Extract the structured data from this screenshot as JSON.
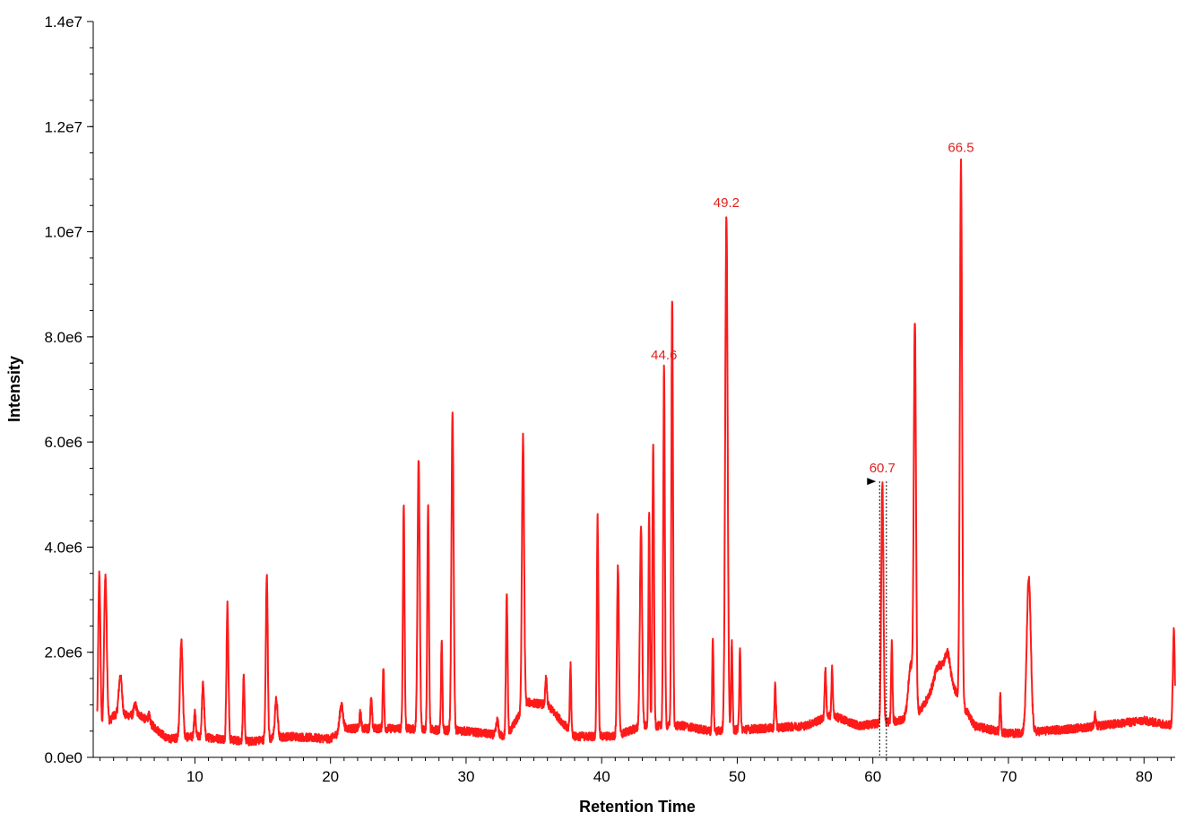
{
  "chart_data": {
    "type": "line",
    "title": "",
    "xlabel": "Retention Time",
    "ylabel": "Intensity",
    "xlim": [
      2.5,
      82.3
    ],
    "ylim": [
      0,
      14000000
    ],
    "x_ticks": [
      10,
      20,
      30,
      40,
      50,
      60,
      70,
      80
    ],
    "x_tick_labels": [
      "10",
      "20",
      "30",
      "40",
      "50",
      "60",
      "70",
      "80"
    ],
    "y_ticks": [
      0,
      2000000,
      4000000,
      6000000,
      8000000,
      10000000,
      12000000,
      14000000
    ],
    "y_tick_labels": [
      "0.0e0",
      "2.0e6",
      "4.0e6",
      "6.0e6",
      "8.0e6",
      "1.0e7",
      "1.2e7",
      "1.4e7"
    ],
    "grid": false,
    "legend": "none",
    "line_color": "#ff1a1a",
    "label_color": "#e0201e",
    "baseline": [
      [
        2.8,
        300000
      ],
      [
        4,
        800000
      ],
      [
        6,
        800000
      ],
      [
        8,
        350000
      ],
      [
        10,
        400000
      ],
      [
        14,
        300000
      ],
      [
        17,
        400000
      ],
      [
        20,
        350000
      ],
      [
        21,
        550000
      ],
      [
        25,
        550000
      ],
      [
        30,
        500000
      ],
      [
        33,
        400000
      ],
      [
        34.5,
        1050000
      ],
      [
        36,
        1000000
      ],
      [
        38,
        400000
      ],
      [
        41,
        400000
      ],
      [
        43,
        600000
      ],
      [
        46,
        600000
      ],
      [
        48,
        500000
      ],
      [
        52,
        550000
      ],
      [
        55,
        600000
      ],
      [
        57,
        800000
      ],
      [
        59,
        600000
      ],
      [
        62,
        700000
      ],
      [
        63.5,
        900000
      ],
      [
        65,
        1500000
      ],
      [
        66,
        1300000
      ],
      [
        67.5,
        600000
      ],
      [
        70,
        450000
      ],
      [
        75,
        550000
      ],
      [
        80,
        700000
      ],
      [
        82.3,
        600000
      ]
    ],
    "peaks": [
      {
        "x": 2.95,
        "y": 3500000,
        "w": 0.08
      },
      {
        "x": 3.4,
        "y": 3450000,
        "w": 0.1
      },
      {
        "x": 4.5,
        "y": 1550000,
        "w": 0.12
      },
      {
        "x": 5.6,
        "y": 1000000,
        "w": 0.1
      },
      {
        "x": 6.6,
        "y": 800000,
        "w": 0.08
      },
      {
        "x": 9.0,
        "y": 2200000,
        "w": 0.1
      },
      {
        "x": 10.0,
        "y": 850000,
        "w": 0.06
      },
      {
        "x": 10.6,
        "y": 1400000,
        "w": 0.08
      },
      {
        "x": 12.4,
        "y": 2900000,
        "w": 0.07
      },
      {
        "x": 13.6,
        "y": 1500000,
        "w": 0.06
      },
      {
        "x": 15.3,
        "y": 3500000,
        "w": 0.07
      },
      {
        "x": 16.0,
        "y": 1100000,
        "w": 0.1
      },
      {
        "x": 20.8,
        "y": 1000000,
        "w": 0.12
      },
      {
        "x": 22.2,
        "y": 850000,
        "w": 0.06
      },
      {
        "x": 23.0,
        "y": 1100000,
        "w": 0.06
      },
      {
        "x": 23.9,
        "y": 1750000,
        "w": 0.05
      },
      {
        "x": 25.4,
        "y": 4800000,
        "w": 0.06
      },
      {
        "x": 26.5,
        "y": 5650000,
        "w": 0.08
      },
      {
        "x": 27.2,
        "y": 4800000,
        "w": 0.06
      },
      {
        "x": 28.2,
        "y": 2200000,
        "w": 0.05
      },
      {
        "x": 29.0,
        "y": 6500000,
        "w": 0.08
      },
      {
        "x": 32.3,
        "y": 700000,
        "w": 0.08
      },
      {
        "x": 33.0,
        "y": 3100000,
        "w": 0.06
      },
      {
        "x": 34.2,
        "y": 6100000,
        "w": 0.08
      },
      {
        "x": 35.9,
        "y": 1500000,
        "w": 0.06
      },
      {
        "x": 37.7,
        "y": 1750000,
        "w": 0.05
      },
      {
        "x": 39.7,
        "y": 4550000,
        "w": 0.06
      },
      {
        "x": 41.2,
        "y": 3650000,
        "w": 0.07
      },
      {
        "x": 42.9,
        "y": 4400000,
        "w": 0.08
      },
      {
        "x": 43.5,
        "y": 4650000,
        "w": 0.05
      },
      {
        "x": 43.8,
        "y": 5950000,
        "w": 0.06
      },
      {
        "x": 44.6,
        "y": 7400000,
        "w": 0.06
      },
      {
        "x": 45.2,
        "y": 8750000,
        "w": 0.06
      },
      {
        "x": 48.2,
        "y": 2250000,
        "w": 0.05
      },
      {
        "x": 49.2,
        "y": 10300000,
        "w": 0.09
      },
      {
        "x": 49.6,
        "y": 2200000,
        "w": 0.05
      },
      {
        "x": 50.2,
        "y": 2100000,
        "w": 0.05
      },
      {
        "x": 52.8,
        "y": 1400000,
        "w": 0.05
      },
      {
        "x": 56.5,
        "y": 1650000,
        "w": 0.06
      },
      {
        "x": 57.0,
        "y": 1700000,
        "w": 0.05
      },
      {
        "x": 60.7,
        "y": 5250000,
        "w": 0.08
      },
      {
        "x": 61.4,
        "y": 2200000,
        "w": 0.05
      },
      {
        "x": 62.8,
        "y": 1750000,
        "w": 0.18
      },
      {
        "x": 63.1,
        "y": 8100000,
        "w": 0.08
      },
      {
        "x": 64.9,
        "y": 1750000,
        "w": 0.3
      },
      {
        "x": 65.5,
        "y": 1950000,
        "w": 0.2
      },
      {
        "x": 66.5,
        "y": 11350000,
        "w": 0.08
      },
      {
        "x": 69.4,
        "y": 1150000,
        "w": 0.05
      },
      {
        "x": 71.5,
        "y": 3400000,
        "w": 0.15
      },
      {
        "x": 76.4,
        "y": 800000,
        "w": 0.05
      },
      {
        "x": 82.2,
        "y": 2450000,
        "w": 0.07
      }
    ],
    "peak_labels": [
      {
        "x": 44.6,
        "y": 7400000,
        "text": "44.6"
      },
      {
        "x": 49.2,
        "y": 10300000,
        "text": "49.2"
      },
      {
        "x": 60.7,
        "y": 5250000,
        "text": "60.7"
      },
      {
        "x": 66.5,
        "y": 11350000,
        "text": "66.5"
      }
    ],
    "marker": {
      "x": 60.7,
      "x_start": 60.5,
      "x_end": 61.0,
      "y": 5250000
    }
  }
}
